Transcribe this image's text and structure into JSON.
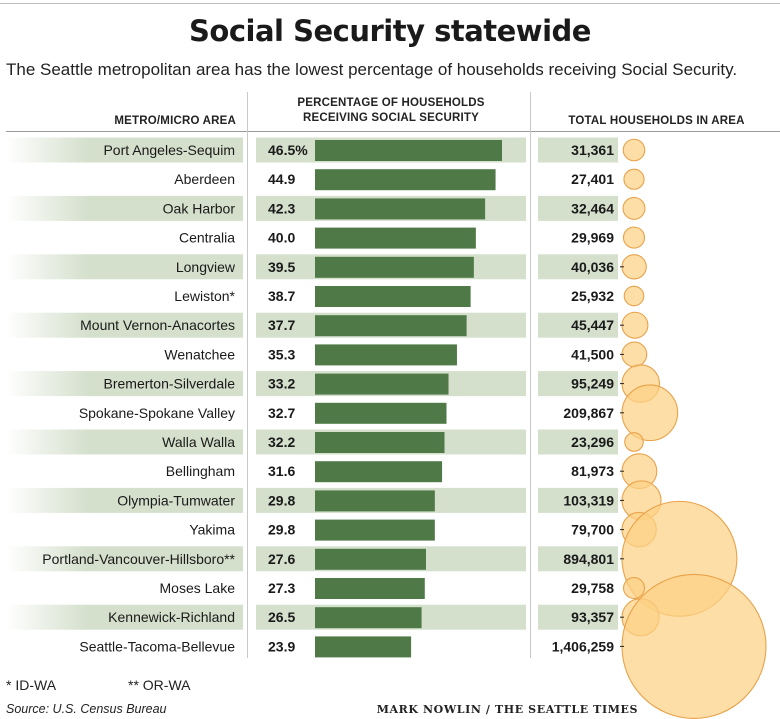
{
  "title": "Social Security statewide",
  "subtitle": "The Seattle metropolitan area has the lowest percentage of households receiving Social Security.",
  "headers": {
    "metro": "METRO/MICRO AREA",
    "pct_line1": "PERCENTAGE OF HOUSEHOLDS",
    "pct_line2": "RECEIVING SOCIAL SECURITY",
    "total": "TOTAL HOUSEHOLDS IN AREA"
  },
  "footnotes": {
    "id_wa": "* ID-WA",
    "or_wa": "** OR-WA"
  },
  "source": "Source: U.S. Census Bureau",
  "credit": "MARK NOWLIN / THE SEATTLE TIMES",
  "colors": {
    "bar": "#4f7a47",
    "band": "#d4dfcc",
    "bubble_fill": "#fcd185",
    "bubble_stroke": "#e8a24a"
  },
  "chart_data": {
    "type": "bar",
    "categories": [
      "Port Angeles-Sequim",
      "Aberdeen",
      "Oak Harbor",
      "Centralia",
      "Longview",
      "Lewiston*",
      "Mount Vernon-Anacortes",
      "Wenatchee",
      "Bremerton-Silverdale",
      "Spokane-Spokane Valley",
      "Walla Walla",
      "Bellingham",
      "Olympia-Tumwater",
      "Yakima",
      "Portland-Vancouver-Hillsboro**",
      "Moses Lake",
      "Kennewick-Richland",
      "Seattle-Tacoma-Bellevue"
    ],
    "pct_labels": [
      "46.5%",
      "44.9",
      "42.3",
      "40.0",
      "39.5",
      "38.7",
      "37.7",
      "35.3",
      "33.2",
      "32.7",
      "32.2",
      "31.6",
      "29.8",
      "29.8",
      "27.6",
      "27.3",
      "26.5",
      "23.9"
    ],
    "values": [
      46.5,
      44.9,
      42.3,
      40.0,
      39.5,
      38.7,
      37.7,
      35.3,
      33.2,
      32.7,
      32.2,
      31.6,
      29.8,
      29.8,
      27.6,
      27.3,
      26.5,
      23.9
    ],
    "households_labels": [
      "31,361",
      "27,401",
      "32,464",
      "29,969",
      "40,036",
      "25,932",
      "45,447",
      "41,500",
      "95,249",
      "209,867",
      "23,296",
      "81,973",
      "103,319",
      "79,700",
      "894,801",
      "29,758",
      "93,357",
      "1,406,259"
    ],
    "households": [
      31361,
      27401,
      32464,
      29969,
      40036,
      25932,
      45447,
      41500,
      95249,
      209867,
      23296,
      81973,
      103319,
      79700,
      894801,
      29758,
      93357,
      1406259
    ],
    "xlim": [
      0,
      50
    ],
    "grid": false,
    "legend": "none"
  }
}
